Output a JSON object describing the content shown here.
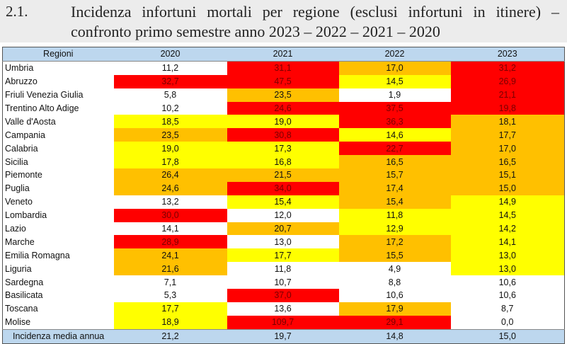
{
  "section_number": "2.1.",
  "title_line1": "Incidenza infortuni mortali per regione (esclusi infortuni in itinere) –",
  "title_line2": "confronto primo semestre anno 2023 – 2022 – 2021 – 2020",
  "colors": {
    "r": "#ff0000",
    "o": "#ffc000",
    "y": "#ffff00",
    "w": "#ffffff",
    "header": "#bdd7ee"
  },
  "headers": [
    "Regioni",
    "2020",
    "2021",
    "2022",
    "2023"
  ],
  "rows": [
    {
      "region": "Umbria",
      "values": [
        "11,2",
        "31,1",
        "17,0",
        "31,2"
      ],
      "levels": [
        "w",
        "r",
        "o",
        "r"
      ]
    },
    {
      "region": "Abruzzo",
      "values": [
        "32,7",
        "47,5",
        "14,5",
        "26,9"
      ],
      "levels": [
        "r",
        "r",
        "y",
        "r"
      ]
    },
    {
      "region": "Friuli Venezia Giulia",
      "values": [
        "5,8",
        "23,5",
        "1,9",
        "21,1"
      ],
      "levels": [
        "w",
        "o",
        "w",
        "r"
      ]
    },
    {
      "region": "Trentino Alto Adige",
      "values": [
        "10,2",
        "24,6",
        "37,5",
        "19,8"
      ],
      "levels": [
        "w",
        "r",
        "r",
        "r"
      ]
    },
    {
      "region": "Valle d'Aosta",
      "values": [
        "18,5",
        "19,0",
        "36,3",
        "18,1"
      ],
      "levels": [
        "y",
        "y",
        "r",
        "o"
      ]
    },
    {
      "region": "Campania",
      "values": [
        "23,5",
        "30,8",
        "14,6",
        "17,7"
      ],
      "levels": [
        "o",
        "r",
        "y",
        "o"
      ]
    },
    {
      "region": "Calabria",
      "values": [
        "19,0",
        "17,3",
        "22,7",
        "17,0"
      ],
      "levels": [
        "y",
        "y",
        "r",
        "o"
      ]
    },
    {
      "region": "Sicilia",
      "values": [
        "17,8",
        "16,8",
        "16,5",
        "16,5"
      ],
      "levels": [
        "y",
        "y",
        "o",
        "o"
      ]
    },
    {
      "region": "Piemonte",
      "values": [
        "26,4",
        "21,5",
        "15,7",
        "15,1"
      ],
      "levels": [
        "o",
        "o",
        "o",
        "o"
      ]
    },
    {
      "region": "Puglia",
      "values": [
        "24,6",
        "34,0",
        "17,4",
        "15,0"
      ],
      "levels": [
        "o",
        "r",
        "o",
        "o"
      ]
    },
    {
      "region": "Veneto",
      "values": [
        "13,2",
        "15,4",
        "15,4",
        "14,9"
      ],
      "levels": [
        "w",
        "y",
        "o",
        "y"
      ]
    },
    {
      "region": "Lombardia",
      "values": [
        "30,0",
        "12,0",
        "11,8",
        "14,5"
      ],
      "levels": [
        "r",
        "w",
        "y",
        "y"
      ]
    },
    {
      "region": "Lazio",
      "values": [
        "14,1",
        "20,7",
        "12,9",
        "14,2"
      ],
      "levels": [
        "w",
        "o",
        "y",
        "y"
      ]
    },
    {
      "region": "Marche",
      "values": [
        "28,9",
        "13,0",
        "17,2",
        "14,1"
      ],
      "levels": [
        "r",
        "w",
        "o",
        "y"
      ]
    },
    {
      "region": "Emilia Romagna",
      "values": [
        "24,1",
        "17,7",
        "15,5",
        "13,0"
      ],
      "levels": [
        "o",
        "y",
        "o",
        "y"
      ]
    },
    {
      "region": "Liguria",
      "values": [
        "21,6",
        "11,8",
        "4,9",
        "13,0"
      ],
      "levels": [
        "o",
        "w",
        "w",
        "y"
      ]
    },
    {
      "region": "Sardegna",
      "values": [
        "7,1",
        "10,7",
        "8,8",
        "10,6"
      ],
      "levels": [
        "w",
        "w",
        "w",
        "w"
      ]
    },
    {
      "region": "Basilicata",
      "values": [
        "5,3",
        "37,0",
        "10,6",
        "10,6"
      ],
      "levels": [
        "w",
        "r",
        "w",
        "w"
      ]
    },
    {
      "region": "Toscana",
      "values": [
        "17,7",
        "13,6",
        "17,9",
        "8,7"
      ],
      "levels": [
        "y",
        "w",
        "o",
        "w"
      ]
    },
    {
      "region": "Molise",
      "values": [
        "18,9",
        "109,7",
        "29,1",
        "0,0"
      ],
      "levels": [
        "y",
        "r",
        "r",
        "w"
      ]
    }
  ],
  "average": {
    "label": "Incidenza media annua",
    "values": [
      "21,2",
      "19,7",
      "14,8",
      "15,0"
    ]
  }
}
